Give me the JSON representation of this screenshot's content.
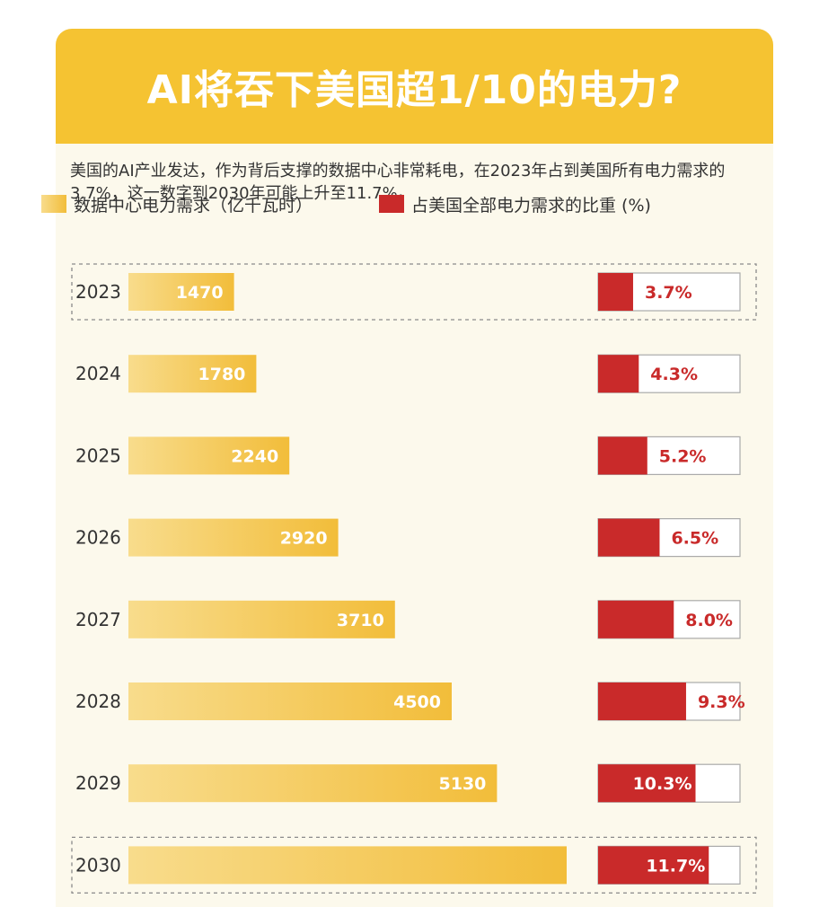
{
  "title": "AI将吞下美国超1/10的电力?",
  "intro": "美国的AI产业发达，作为背后支撑的数据中心非常耗电，在2023年占到美国所有电力需求的3.7%，这一数字到2030年可能上升至11.7%。",
  "legend": {
    "demand": "数据中心电力需求（亿千瓦时）",
    "share": "占美国全部电力需求的比重 (%)"
  },
  "colors": {
    "header": "#f5c332",
    "bar_light": "#f8dc8c",
    "bar_dark": "#f2bd3a",
    "share": "#c92a2a",
    "background": "#fcf9ec"
  },
  "chart_data": {
    "type": "bar",
    "orientation": "horizontal",
    "categories": [
      "2023",
      "2024",
      "2025",
      "2026",
      "2027",
      "2028",
      "2029",
      "2030"
    ],
    "series": [
      {
        "name": "数据中心电力需求（亿千瓦时）",
        "values": [
          1470,
          1780,
          2240,
          2920,
          3710,
          4500,
          5130,
          6100
        ],
        "labels": [
          "1470",
          "1780",
          "2240",
          "2920",
          "3710",
          "4500",
          "5130",
          ""
        ]
      },
      {
        "name": "占美国全部电力需求的比重 (%)",
        "values": [
          3.7,
          4.3,
          5.2,
          6.5,
          8.0,
          9.3,
          10.3,
          11.7
        ],
        "labels": [
          "3.7%",
          "4.3%",
          "5.2%",
          "6.5%",
          "8.0%",
          "9.3%",
          "10.3%",
          "11.7%"
        ]
      }
    ],
    "highlighted": [
      "2023",
      "2030"
    ],
    "share_scale_max": 15
  }
}
